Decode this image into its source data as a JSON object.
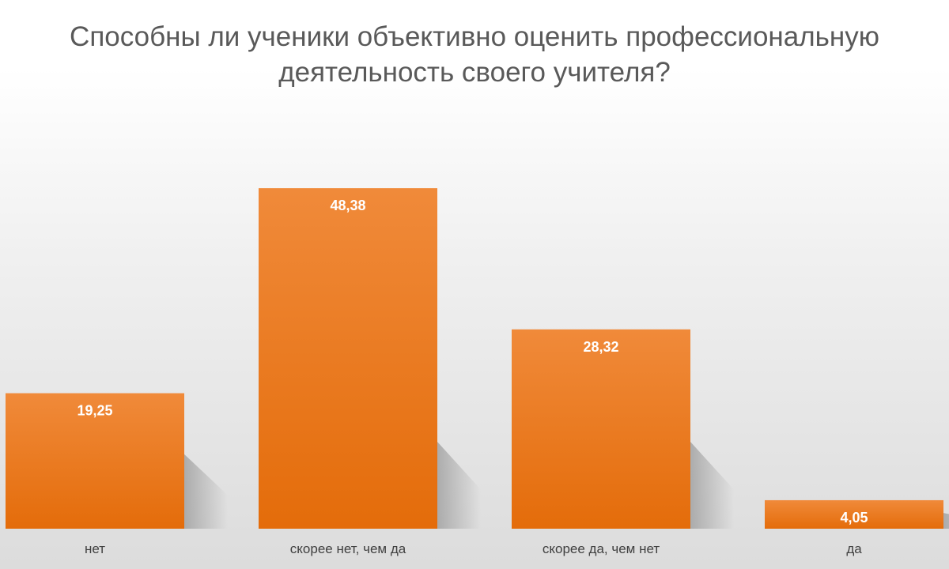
{
  "chart_data": {
    "type": "bar",
    "title": "Способны ли ученики объективно оценить профессиональную деятельность своего учителя?",
    "title_lines": [
      "Способны ли ученики объективно оценить профессиональную",
      "деятельность своего учителя?"
    ],
    "categories": [
      "нет",
      "скорее нет, чем да",
      "скорее да, чем нет",
      "да"
    ],
    "values": [
      19.25,
      48.38,
      28.32,
      4.05
    ],
    "value_labels": [
      "19,25",
      "48,38",
      "28,32",
      "4,05"
    ],
    "xlabel": "",
    "ylabel": "",
    "ylim": [
      0,
      60
    ],
    "grid": false,
    "legend": "none",
    "bar_color": "#E46C0A",
    "bar_color_light": "#F08A3A",
    "label_color": "#FFFFFF",
    "category_color": "#404040"
  }
}
